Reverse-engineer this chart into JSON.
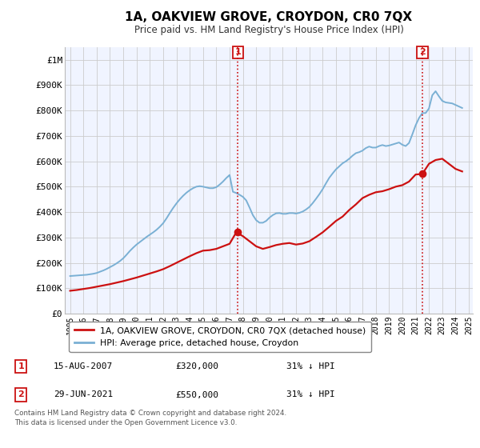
{
  "title": "1A, OAKVIEW GROVE, CROYDON, CR0 7QX",
  "subtitle": "Price paid vs. HM Land Registry's House Price Index (HPI)",
  "ylim": [
    0,
    1050000
  ],
  "yticks": [
    0,
    100000,
    200000,
    300000,
    400000,
    500000,
    600000,
    700000,
    800000,
    900000,
    1000000
  ],
  "ytick_labels": [
    "£0",
    "£100K",
    "£200K",
    "£300K",
    "£400K",
    "£500K",
    "£600K",
    "£700K",
    "£800K",
    "£900K",
    "£1M"
  ],
  "background_color": "#ffffff",
  "plot_bg_color": "#f0f4ff",
  "grid_color": "#cccccc",
  "hpi_color": "#7ab0d4",
  "price_color": "#cc1111",
  "marker1_year": 2007.625,
  "marker1_price": 320000,
  "marker2_year": 2021.5,
  "marker2_price": 550000,
  "legend_label_price": "1A, OAKVIEW GROVE, CROYDON, CR0 7QX (detached house)",
  "legend_label_hpi": "HPI: Average price, detached house, Croydon",
  "table_rows": [
    {
      "num": "1",
      "date": "15-AUG-2007",
      "price": "£320,000",
      "hpi": "31% ↓ HPI"
    },
    {
      "num": "2",
      "date": "29-JUN-2021",
      "price": "£550,000",
      "hpi": "31% ↓ HPI"
    }
  ],
  "footnote": "Contains HM Land Registry data © Crown copyright and database right 2024.\nThis data is licensed under the Open Government Licence v3.0.",
  "hpi_data": {
    "years": [
      1995.0,
      1995.25,
      1995.5,
      1995.75,
      1996.0,
      1996.25,
      1996.5,
      1996.75,
      1997.0,
      1997.25,
      1997.5,
      1997.75,
      1998.0,
      1998.25,
      1998.5,
      1998.75,
      1999.0,
      1999.25,
      1999.5,
      1999.75,
      2000.0,
      2000.25,
      2000.5,
      2000.75,
      2001.0,
      2001.25,
      2001.5,
      2001.75,
      2002.0,
      2002.25,
      2002.5,
      2002.75,
      2003.0,
      2003.25,
      2003.5,
      2003.75,
      2004.0,
      2004.25,
      2004.5,
      2004.75,
      2005.0,
      2005.25,
      2005.5,
      2005.75,
      2006.0,
      2006.25,
      2006.5,
      2006.75,
      2007.0,
      2007.25,
      2007.5,
      2007.75,
      2008.0,
      2008.25,
      2008.5,
      2008.75,
      2009.0,
      2009.25,
      2009.5,
      2009.75,
      2010.0,
      2010.25,
      2010.5,
      2010.75,
      2011.0,
      2011.25,
      2011.5,
      2011.75,
      2012.0,
      2012.25,
      2012.5,
      2012.75,
      2013.0,
      2013.25,
      2013.5,
      2013.75,
      2014.0,
      2014.25,
      2014.5,
      2014.75,
      2015.0,
      2015.25,
      2015.5,
      2015.75,
      2016.0,
      2016.25,
      2016.5,
      2016.75,
      2017.0,
      2017.25,
      2017.5,
      2017.75,
      2018.0,
      2018.25,
      2018.5,
      2018.75,
      2019.0,
      2019.25,
      2019.5,
      2019.75,
      2020.0,
      2020.25,
      2020.5,
      2020.75,
      2021.0,
      2021.25,
      2021.5,
      2021.75,
      2022.0,
      2022.25,
      2022.5,
      2022.75,
      2023.0,
      2023.25,
      2023.5,
      2023.75,
      2024.0,
      2024.25,
      2024.5
    ],
    "values": [
      148000,
      149000,
      150000,
      151000,
      152000,
      153000,
      155000,
      157000,
      160000,
      165000,
      170000,
      176000,
      183000,
      190000,
      198000,
      207000,
      218000,
      232000,
      247000,
      260000,
      272000,
      282000,
      292000,
      302000,
      311000,
      320000,
      330000,
      342000,
      356000,
      375000,
      396000,
      416000,
      434000,
      450000,
      464000,
      476000,
      486000,
      494000,
      500000,
      502000,
      500000,
      497000,
      494000,
      494000,
      498000,
      508000,
      520000,
      534000,
      546000,
      480000,
      475000,
      468000,
      460000,
      446000,
      418000,
      388000,
      368000,
      358000,
      358000,
      365000,
      378000,
      388000,
      395000,
      396000,
      393000,
      393000,
      396000,
      396000,
      394000,
      397000,
      402000,
      410000,
      420000,
      435000,
      452000,
      470000,
      490000,
      513000,
      535000,
      552000,
      568000,
      580000,
      592000,
      600000,
      610000,
      622000,
      632000,
      636000,
      642000,
      652000,
      658000,
      654000,
      654000,
      660000,
      664000,
      660000,
      662000,
      666000,
      670000,
      674000,
      665000,
      660000,
      672000,
      706000,
      742000,
      770000,
      790000,
      790000,
      808000,
      860000,
      876000,
      856000,
      838000,
      832000,
      830000,
      828000,
      822000,
      816000,
      810000
    ]
  },
  "price_data": {
    "years": [
      1995.0,
      1995.5,
      1996.0,
      1996.5,
      1997.0,
      1997.5,
      1998.0,
      1998.5,
      1999.0,
      1999.5,
      2000.0,
      2000.5,
      2001.0,
      2001.5,
      2002.0,
      2002.5,
      2003.0,
      2003.5,
      2004.0,
      2004.5,
      2005.0,
      2005.5,
      2006.0,
      2006.5,
      2007.0,
      2007.5,
      2008.0,
      2008.5,
      2009.0,
      2009.5,
      2010.0,
      2010.5,
      2011.0,
      2011.5,
      2012.0,
      2012.5,
      2013.0,
      2013.5,
      2014.0,
      2014.5,
      2015.0,
      2015.5,
      2016.0,
      2016.5,
      2017.0,
      2017.5,
      2018.0,
      2018.5,
      2019.0,
      2019.5,
      2020.0,
      2020.5,
      2021.0,
      2021.5,
      2022.0,
      2022.5,
      2023.0,
      2023.5,
      2024.0,
      2024.5
    ],
    "values": [
      90000,
      93000,
      97000,
      101000,
      106000,
      111000,
      116000,
      122000,
      128000,
      135000,
      142000,
      150000,
      158000,
      166000,
      175000,
      187000,
      200000,
      213000,
      226000,
      238000,
      248000,
      250000,
      255000,
      265000,
      275000,
      320000,
      305000,
      285000,
      265000,
      255000,
      262000,
      270000,
      275000,
      278000,
      272000,
      276000,
      285000,
      302000,
      320000,
      342000,
      365000,
      382000,
      408000,
      430000,
      455000,
      468000,
      478000,
      482000,
      490000,
      500000,
      506000,
      520000,
      548000,
      550000,
      590000,
      605000,
      610000,
      590000,
      570000,
      560000
    ]
  }
}
